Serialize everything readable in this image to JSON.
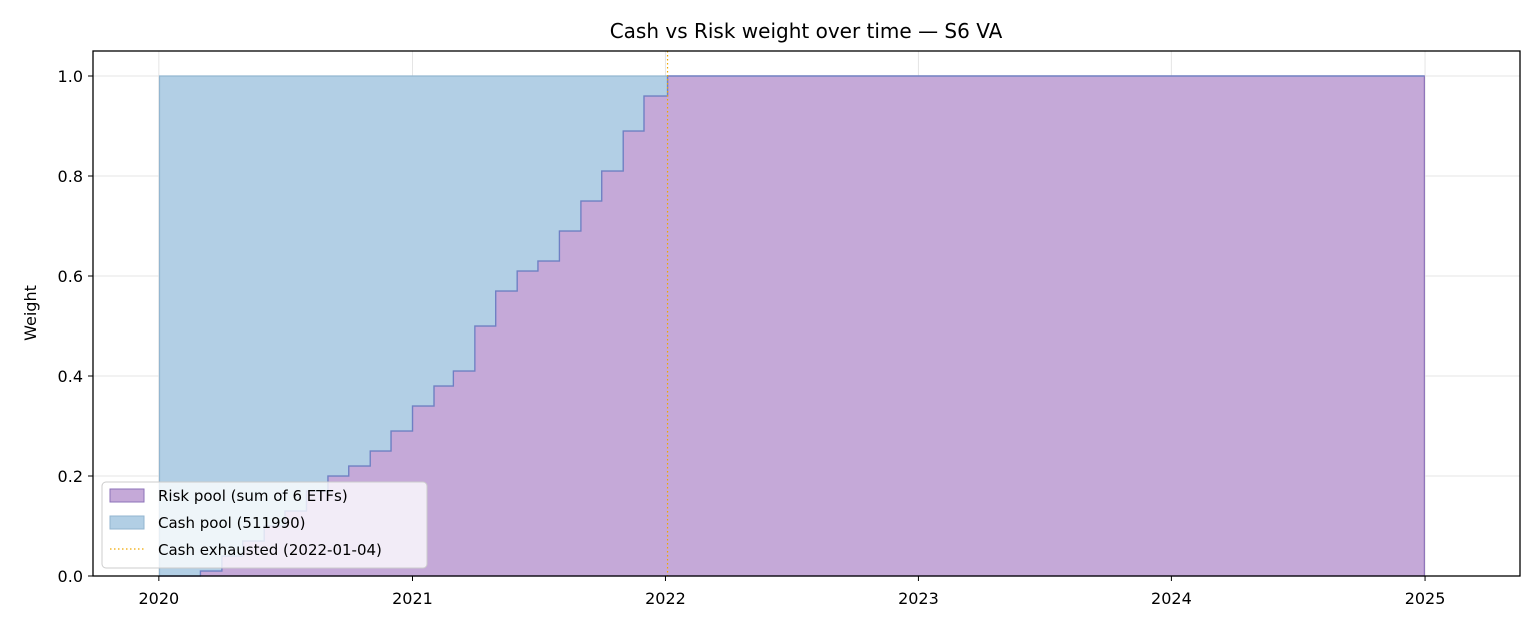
{
  "chart_data": {
    "type": "area",
    "title": "Cash vs Risk weight over time — S6 VA",
    "xlabel": "",
    "ylabel": "Weight",
    "xlim": [
      "2019-09-28",
      "2025-05-18"
    ],
    "ylim": [
      0,
      1.05
    ],
    "x_ticks": [
      "2020",
      "2021",
      "2022",
      "2023",
      "2024",
      "2025"
    ],
    "y_ticks": [
      "0.0",
      "0.2",
      "0.4",
      "0.6",
      "0.8",
      "1.0"
    ],
    "grid": true,
    "legend_position": "lower-left",
    "stacked": true,
    "x": [
      "2020-01-02",
      "2020-02-01",
      "2020-03-01",
      "2020-04-01",
      "2020-05-01",
      "2020-06-01",
      "2020-07-01",
      "2020-08-01",
      "2020-09-01",
      "2020-10-01",
      "2020-11-01",
      "2020-12-01",
      "2021-01-01",
      "2021-02-01",
      "2021-03-01",
      "2021-04-01",
      "2021-05-01",
      "2021-06-01",
      "2021-07-01",
      "2021-08-01",
      "2021-09-01",
      "2021-10-01",
      "2021-11-01",
      "2021-12-01",
      "2021-12-31",
      "2022-01-04",
      "2024-12-31"
    ],
    "series": [
      {
        "name": "Risk pool (sum of 6 ETFs)",
        "color": "#c5a9d8",
        "values": [
          0.0,
          0.0,
          0.01,
          0.04,
          0.07,
          0.1,
          0.13,
          0.17,
          0.2,
          0.22,
          0.25,
          0.29,
          0.34,
          0.38,
          0.41,
          0.5,
          0.57,
          0.61,
          0.63,
          0.69,
          0.75,
          0.81,
          0.89,
          0.96,
          0.96,
          1.0,
          1.0
        ]
      },
      {
        "name": "Cash pool (511990)",
        "color": "#b2cfe5",
        "values": [
          1.0,
          1.0,
          0.99,
          0.96,
          0.93,
          0.9,
          0.87,
          0.83,
          0.8,
          0.78,
          0.75,
          0.71,
          0.66,
          0.62,
          0.59,
          0.5,
          0.43,
          0.39,
          0.37,
          0.31,
          0.25,
          0.19,
          0.11,
          0.04,
          0.04,
          0.0,
          0.0
        ]
      }
    ],
    "annotations": [
      {
        "type": "vline",
        "x": "2022-01-04",
        "label": "Cash exhausted (2022-01-04)",
        "color": "#f0a800",
        "style": "dotted"
      }
    ],
    "legend": [
      {
        "label": "Risk pool (sum of 6 ETFs)",
        "color": "#c5a9d8",
        "kind": "patch"
      },
      {
        "label": "Cash pool (511990)",
        "color": "#b2cfe5",
        "kind": "patch"
      },
      {
        "label": "Cash exhausted (2022-01-04)",
        "color": "#f0a800",
        "kind": "line"
      }
    ]
  }
}
